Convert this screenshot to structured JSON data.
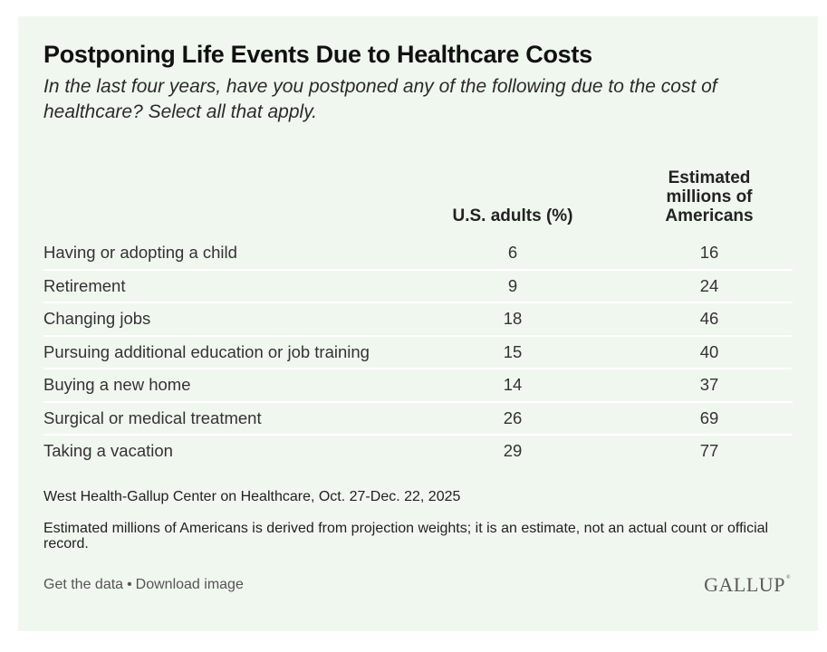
{
  "title": "Postponing Life Events Due to Healthcare Costs",
  "subtitle": "In the last four years, have you postponed any of the following due to the cost of healthcare? Select all that apply.",
  "table": {
    "headers": {
      "label": "",
      "pct": "U.S. adults (%)",
      "millions_lines": [
        "Estimated",
        "millions of",
        "Americans"
      ]
    },
    "rows": [
      {
        "label": "Having or adopting a child",
        "pct": "6",
        "millions": "16"
      },
      {
        "label": "Retirement",
        "pct": "9",
        "millions": "24"
      },
      {
        "label": "Changing jobs",
        "pct": "18",
        "millions": "46"
      },
      {
        "label": "Pursuing additional education or job training",
        "pct": "15",
        "millions": "40"
      },
      {
        "label": "Buying a new home",
        "pct": "14",
        "millions": "37"
      },
      {
        "label": "Surgical or medical treatment",
        "pct": "26",
        "millions": "69"
      },
      {
        "label": "Taking a vacation",
        "pct": "29",
        "millions": "77"
      }
    ]
  },
  "footer": {
    "source": "West Health-Gallup Center on Healthcare, Oct. 27-Dec. 22, 2025",
    "note": "Estimated millions of Americans is derived from projection weights; it is an estimate, not an actual count or official record.",
    "get_data_label": "Get the data",
    "separator": "•",
    "download_label": "Download image",
    "logo_text": "GALLUP",
    "logo_mark": "®"
  },
  "colors": {
    "panel_background": "#f0f7ef",
    "divider": "#ffffff",
    "title_text": "#111111",
    "body_text": "#333333",
    "link_text": "#555555",
    "logo": "#5a5a5a"
  },
  "chart_data": {
    "type": "table",
    "title": "Postponing Life Events Due to Healthcare Costs",
    "subtitle": "In the last four years, have you postponed any of the following due to the cost of healthcare? Select all that apply.",
    "columns": [
      "",
      "U.S. adults (%)",
      "Estimated millions of Americans"
    ],
    "categories": [
      "Having or adopting a child",
      "Retirement",
      "Changing jobs",
      "Pursuing additional education or job training",
      "Buying a new home",
      "Surgical or medical treatment",
      "Taking a vacation"
    ],
    "series": [
      {
        "name": "U.S. adults (%)",
        "values": [
          6,
          9,
          18,
          15,
          14,
          26,
          29
        ]
      },
      {
        "name": "Estimated millions of Americans",
        "values": [
          16,
          24,
          46,
          40,
          37,
          69,
          77
        ]
      }
    ],
    "source": "West Health-Gallup Center on Healthcare, Oct. 27-Dec. 22, 2025",
    "note": "Estimated millions of Americans is derived from projection weights; it is an estimate, not an actual count or official record."
  }
}
